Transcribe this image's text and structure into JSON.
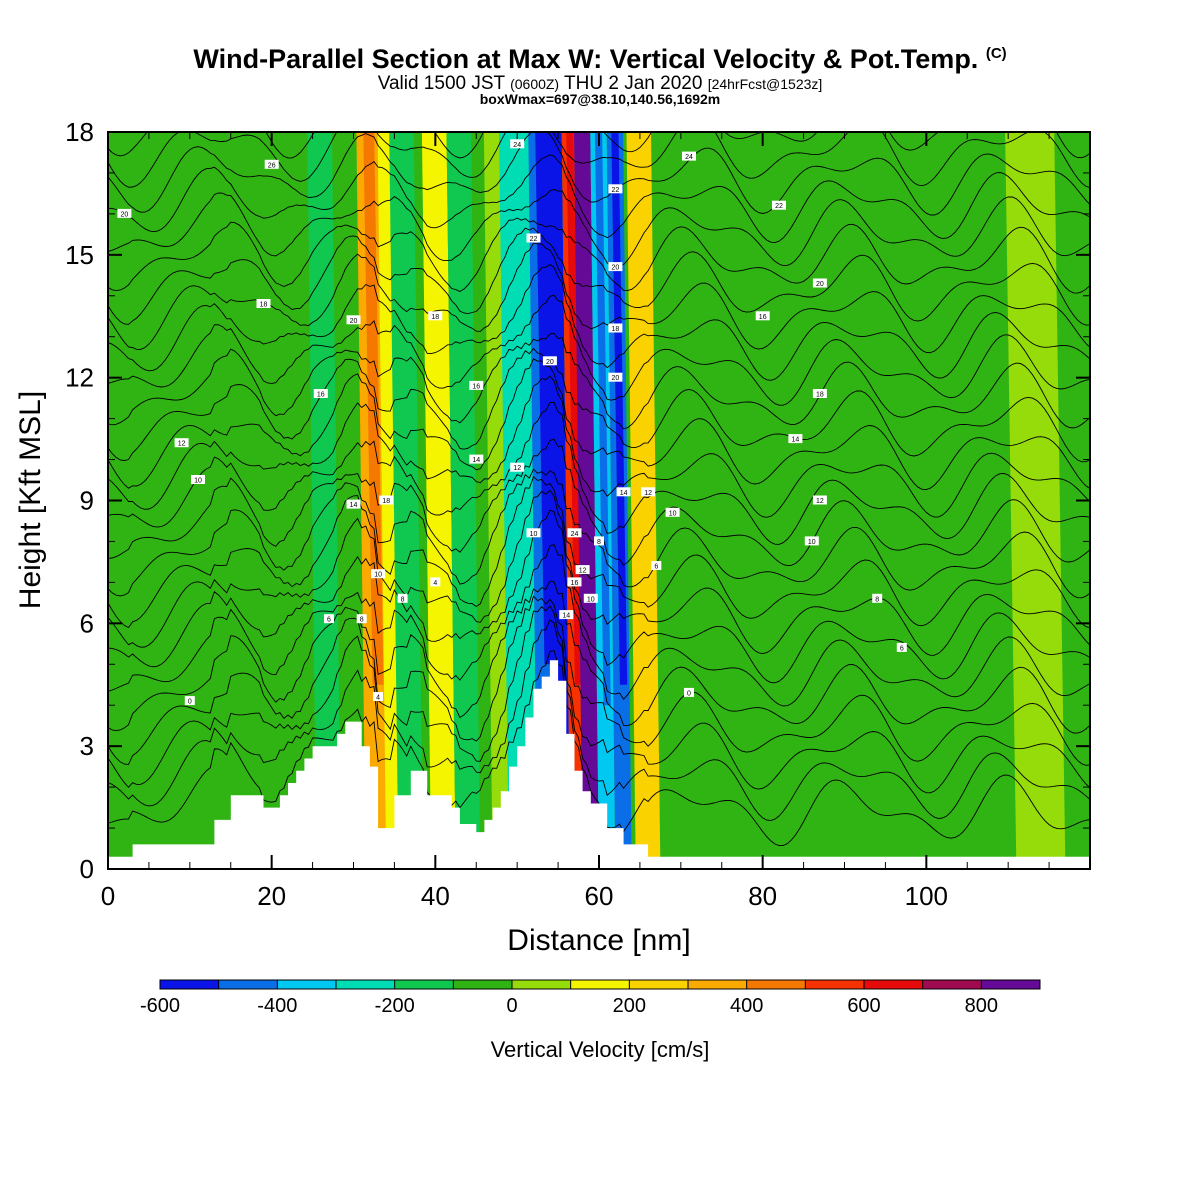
{
  "header": {
    "title_main": "Wind-Parallel Section at Max W: Vertical Velocity & Pot.Temp.",
    "title_mark": "(C)",
    "valid_prefix": "Valid 1500 JST",
    "valid_zulu": "(0600Z)",
    "valid_date": "THU 2 Jan 2020",
    "valid_fcst": "[24hrFcst@1523z]",
    "box_info": "boxWmax=697@38.10,140.56,1692m"
  },
  "chart_data": {
    "type": "heatmap",
    "xlabel": "Distance [nm]",
    "ylabel": "Height [Kft MSL]",
    "xlim": [
      0,
      120
    ],
    "ylim": [
      0,
      18
    ],
    "x_ticks": [
      "0",
      "20",
      "40",
      "60",
      "80",
      "100"
    ],
    "y_ticks": [
      "0",
      "3",
      "6",
      "9",
      "12",
      "15",
      "18"
    ],
    "colorbar": {
      "title": "Vertical Velocity [cm/s]",
      "bounds": [
        -600,
        900
      ],
      "step": 100,
      "tick_labels": [
        "-600",
        "-400",
        "-200",
        "0",
        "200",
        "400",
        "600",
        "800"
      ],
      "colors": [
        "#0a14e6",
        "#0a6ee6",
        "#00c8f0",
        "#00dcb4",
        "#10c850",
        "#30b414",
        "#96dc0a",
        "#f5f500",
        "#fad200",
        "#faaa00",
        "#f57800",
        "#f53200",
        "#e60a0a",
        "#a00a50",
        "#640a96"
      ]
    },
    "terrain_kft": [
      [
        0,
        0.3
      ],
      [
        3,
        0.3
      ],
      [
        3,
        0.6
      ],
      [
        13,
        0.6
      ],
      [
        13,
        1.2
      ],
      [
        15,
        1.2
      ],
      [
        15,
        1.8
      ],
      [
        19,
        1.8
      ],
      [
        19,
        1.5
      ],
      [
        21,
        1.5
      ],
      [
        21,
        1.8
      ],
      [
        22,
        1.8
      ],
      [
        22,
        2.1
      ],
      [
        23,
        2.1
      ],
      [
        23,
        2.4
      ],
      [
        24,
        2.4
      ],
      [
        24,
        2.7
      ],
      [
        25,
        2.7
      ],
      [
        25,
        3.0
      ],
      [
        28,
        3.0
      ],
      [
        28,
        3.3
      ],
      [
        29,
        3.3
      ],
      [
        29,
        3.6
      ],
      [
        31,
        3.6
      ],
      [
        31,
        3.0
      ],
      [
        32,
        3.0
      ],
      [
        32,
        2.5
      ],
      [
        33,
        2.5
      ],
      [
        33,
        1.0
      ],
      [
        35,
        1.0
      ],
      [
        35,
        1.8
      ],
      [
        37,
        1.8
      ],
      [
        37,
        2.4
      ],
      [
        39,
        2.4
      ],
      [
        39,
        1.8
      ],
      [
        42,
        1.8
      ],
      [
        42,
        1.5
      ],
      [
        43,
        1.5
      ],
      [
        43,
        1.1
      ],
      [
        45,
        1.1
      ],
      [
        45,
        0.9
      ],
      [
        46,
        0.9
      ],
      [
        46,
        1.2
      ],
      [
        47,
        1.2
      ],
      [
        47,
        1.5
      ],
      [
        48,
        1.5
      ],
      [
        48,
        1.9
      ],
      [
        49,
        1.9
      ],
      [
        49,
        2.5
      ],
      [
        50,
        2.5
      ],
      [
        50,
        3.0
      ],
      [
        51,
        3.0
      ],
      [
        51,
        3.7
      ],
      [
        52,
        3.7
      ],
      [
        52,
        4.4
      ],
      [
        53,
        4.4
      ],
      [
        53,
        4.7
      ],
      [
        54,
        4.7
      ],
      [
        54,
        5.1
      ],
      [
        55,
        5.1
      ],
      [
        55,
        4.6
      ],
      [
        56,
        4.6
      ],
      [
        56,
        3.3
      ],
      [
        57,
        3.3
      ],
      [
        57,
        2.4
      ],
      [
        58,
        2.4
      ],
      [
        58,
        1.9
      ],
      [
        59,
        1.9
      ],
      [
        59,
        1.6
      ],
      [
        61,
        1.6
      ],
      [
        61,
        1.0
      ],
      [
        63,
        1.0
      ],
      [
        63,
        0.6
      ],
      [
        66,
        0.6
      ],
      [
        66,
        0.3
      ],
      [
        120,
        0.3
      ]
    ],
    "w_columns": [
      {
        "x": 7,
        "w": -30,
        "width": 6
      },
      {
        "x": 19,
        "w": -60,
        "width": 6
      },
      {
        "x": 27,
        "w": -160,
        "width": 3
      },
      {
        "x": 30,
        "w": -100,
        "width": 2
      },
      {
        "x": 33,
        "w": 360,
        "width": 3
      },
      {
        "x": 35,
        "w": 140,
        "width": 2
      },
      {
        "x": 37,
        "w": -140,
        "width": 3
      },
      {
        "x": 41,
        "w": 170,
        "width": 3
      },
      {
        "x": 44,
        "w": -120,
        "width": 3
      },
      {
        "x": 48,
        "w": 80,
        "width": 2
      },
      {
        "x": 51,
        "w": -230,
        "width": 4
      },
      {
        "x": 54,
        "w": -420,
        "width": 3
      },
      {
        "x": 55.5,
        "w": -580,
        "width": 2
      },
      {
        "x": 57.5,
        "w": 520,
        "width": 2
      },
      {
        "x": 59,
        "w": 860,
        "width": 2
      },
      {
        "x": 61,
        "w": -350,
        "width": 2
      },
      {
        "x": 63,
        "w": -480,
        "width": 2
      },
      {
        "x": 66,
        "w": 200,
        "width": 3
      },
      {
        "x": 72,
        "w": -40,
        "width": 4
      },
      {
        "x": 85,
        "w": -100,
        "width": 6
      },
      {
        "x": 104,
        "w": -60,
        "width": 8
      },
      {
        "x": 114,
        "w": 40,
        "width": 6
      }
    ],
    "contour_labels": [
      {
        "x": 2,
        "y": 16.0,
        "text": "20"
      },
      {
        "x": 20,
        "y": 17.2,
        "text": "26"
      },
      {
        "x": 50,
        "y": 17.7,
        "text": "24"
      },
      {
        "x": 71,
        "y": 17.4,
        "text": "24"
      },
      {
        "x": 82,
        "y": 16.2,
        "text": "22"
      },
      {
        "x": 19,
        "y": 13.8,
        "text": "18"
      },
      {
        "x": 30,
        "y": 13.4,
        "text": "20"
      },
      {
        "x": 40,
        "y": 13.5,
        "text": "18"
      },
      {
        "x": 52,
        "y": 15.4,
        "text": "22"
      },
      {
        "x": 62,
        "y": 16.6,
        "text": "22"
      },
      {
        "x": 62,
        "y": 14.7,
        "text": "20"
      },
      {
        "x": 87,
        "y": 14.3,
        "text": "20"
      },
      {
        "x": 80,
        "y": 13.5,
        "text": "16"
      },
      {
        "x": 9,
        "y": 10.4,
        "text": "12"
      },
      {
        "x": 26,
        "y": 11.6,
        "text": "16"
      },
      {
        "x": 45,
        "y": 11.8,
        "text": "16"
      },
      {
        "x": 54,
        "y": 12.4,
        "text": "20"
      },
      {
        "x": 62,
        "y": 13.2,
        "text": "18"
      },
      {
        "x": 62,
        "y": 12.0,
        "text": "20"
      },
      {
        "x": 87,
        "y": 11.6,
        "text": "18"
      },
      {
        "x": 84,
        "y": 10.5,
        "text": "14"
      },
      {
        "x": 11,
        "y": 9.5,
        "text": "10"
      },
      {
        "x": 45,
        "y": 10.0,
        "text": "14"
      },
      {
        "x": 50,
        "y": 9.8,
        "text": "12"
      },
      {
        "x": 30,
        "y": 8.9,
        "text": "14"
      },
      {
        "x": 34,
        "y": 9.0,
        "text": "18"
      },
      {
        "x": 63,
        "y": 9.2,
        "text": "14"
      },
      {
        "x": 66,
        "y": 9.2,
        "text": "12"
      },
      {
        "x": 87,
        "y": 9.0,
        "text": "12"
      },
      {
        "x": 69,
        "y": 8.7,
        "text": "10"
      },
      {
        "x": 52,
        "y": 8.2,
        "text": "10"
      },
      {
        "x": 57,
        "y": 8.2,
        "text": "24"
      },
      {
        "x": 60,
        "y": 8.0,
        "text": "8"
      },
      {
        "x": 86,
        "y": 8.0,
        "text": "10"
      },
      {
        "x": 33,
        "y": 7.2,
        "text": "10"
      },
      {
        "x": 40,
        "y": 7.0,
        "text": "4"
      },
      {
        "x": 58,
        "y": 7.3,
        "text": "12"
      },
      {
        "x": 57,
        "y": 7.0,
        "text": "16"
      },
      {
        "x": 67,
        "y": 7.4,
        "text": "6"
      },
      {
        "x": 36,
        "y": 6.6,
        "text": "8"
      },
      {
        "x": 59,
        "y": 6.6,
        "text": "10"
      },
      {
        "x": 94,
        "y": 6.6,
        "text": "8"
      },
      {
        "x": 27,
        "y": 6.1,
        "text": "6"
      },
      {
        "x": 31,
        "y": 6.1,
        "text": "8"
      },
      {
        "x": 56,
        "y": 6.2,
        "text": "14"
      },
      {
        "x": 97,
        "y": 5.4,
        "text": "6"
      },
      {
        "x": 10,
        "y": 4.1,
        "text": "0"
      },
      {
        "x": 33,
        "y": 4.2,
        "text": "4"
      },
      {
        "x": 71,
        "y": 4.3,
        "text": "0"
      }
    ]
  }
}
